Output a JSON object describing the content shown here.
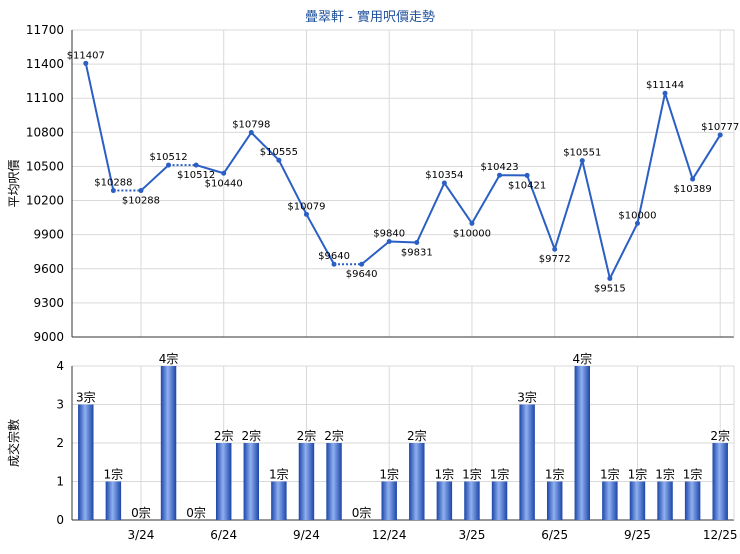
{
  "title": "疊翠軒 - 實用呎價走勢",
  "colors": {
    "line": "#2b5fc4",
    "grid": "#d9d9d9",
    "axis": "#333333",
    "text": "#000000",
    "barLight": "#8fb0f0",
    "barDark": "#1c45a8",
    "title": "#1f4f9c"
  },
  "chart_data": [
    {
      "type": "line",
      "ylabel": "平均呎價",
      "ylim": [
        9000,
        11700
      ],
      "yticks": [
        9000,
        9300,
        9600,
        9900,
        10200,
        10500,
        10800,
        11100,
        11400,
        11700
      ],
      "points": [
        {
          "value": 11407,
          "label": "$11407",
          "pos": "above",
          "link": "solid"
        },
        {
          "value": 10288,
          "label": "$10288",
          "pos": "above",
          "link": "solid"
        },
        {
          "value": 10288,
          "label": "$10288",
          "pos": "below",
          "link": "dotted"
        },
        {
          "value": 10512,
          "label": "$10512",
          "pos": "above",
          "link": "solid"
        },
        {
          "value": 10512,
          "label": "$10512",
          "pos": "below",
          "link": "dotted"
        },
        {
          "value": 10440,
          "label": "$10440",
          "pos": "below",
          "link": "solid"
        },
        {
          "value": 10798,
          "label": "$10798",
          "pos": "above",
          "link": "solid"
        },
        {
          "value": 10555,
          "label": "$10555",
          "pos": "above",
          "link": "solid"
        },
        {
          "value": 10079,
          "label": "$10079",
          "pos": "above",
          "link": "solid"
        },
        {
          "value": 9640,
          "label": "$9640",
          "pos": "above",
          "link": "solid"
        },
        {
          "value": 9640,
          "label": "$9640",
          "pos": "below",
          "link": "dotted"
        },
        {
          "value": 9840,
          "label": "$9840",
          "pos": "above",
          "link": "solid"
        },
        {
          "value": 9831,
          "label": "$9831",
          "pos": "below",
          "link": "solid"
        },
        {
          "value": 10354,
          "label": "$10354",
          "pos": "above",
          "link": "solid"
        },
        {
          "value": 10000,
          "label": "$10000",
          "pos": "below",
          "link": "solid"
        },
        {
          "value": 10423,
          "label": "$10423",
          "pos": "above",
          "link": "solid"
        },
        {
          "value": 10421,
          "label": "$10421",
          "pos": "below",
          "link": "solid"
        },
        {
          "value": 9772,
          "label": "$9772",
          "pos": "below",
          "link": "solid"
        },
        {
          "value": 10551,
          "label": "$10551",
          "pos": "above",
          "link": "solid"
        },
        {
          "value": 9515,
          "label": "$9515",
          "pos": "below",
          "link": "solid"
        },
        {
          "value": 10000,
          "label": "$10000",
          "pos": "above",
          "link": "solid"
        },
        {
          "value": 11144,
          "label": "$11144",
          "pos": "above",
          "link": "solid"
        },
        {
          "value": 10389,
          "label": "$10389",
          "pos": "below",
          "link": "solid"
        },
        {
          "value": 10777,
          "label": "$10777",
          "pos": "above",
          "link": "solid"
        }
      ]
    },
    {
      "type": "bar",
      "ylabel": "成交宗數",
      "ylim": [
        0,
        4
      ],
      "yticks": [
        0,
        1,
        2,
        3,
        4
      ],
      "categories": [
        "",
        "",
        "3/24",
        "",
        "",
        "6/24",
        "",
        "",
        "9/24",
        "",
        "",
        "12/24",
        "",
        "",
        "3/25",
        "",
        "",
        "6/25",
        "",
        "",
        "9/25",
        "",
        "",
        "12/25"
      ],
      "values": [
        3,
        1,
        0,
        4,
        0,
        2,
        2,
        1,
        2,
        2,
        0,
        1,
        2,
        1,
        1,
        1,
        3,
        1,
        4,
        1,
        1,
        1,
        1,
        2
      ],
      "value_labels": [
        "3宗",
        "1宗",
        "0宗",
        "4宗",
        "0宗",
        "2宗",
        "2宗",
        "1宗",
        "2宗",
        "2宗",
        "0宗",
        "1宗",
        "2宗",
        "1宗",
        "1宗",
        "1宗",
        "3宗",
        "1宗",
        "4宗",
        "1宗",
        "1宗",
        "1宗",
        "1宗",
        "2宗"
      ]
    }
  ]
}
